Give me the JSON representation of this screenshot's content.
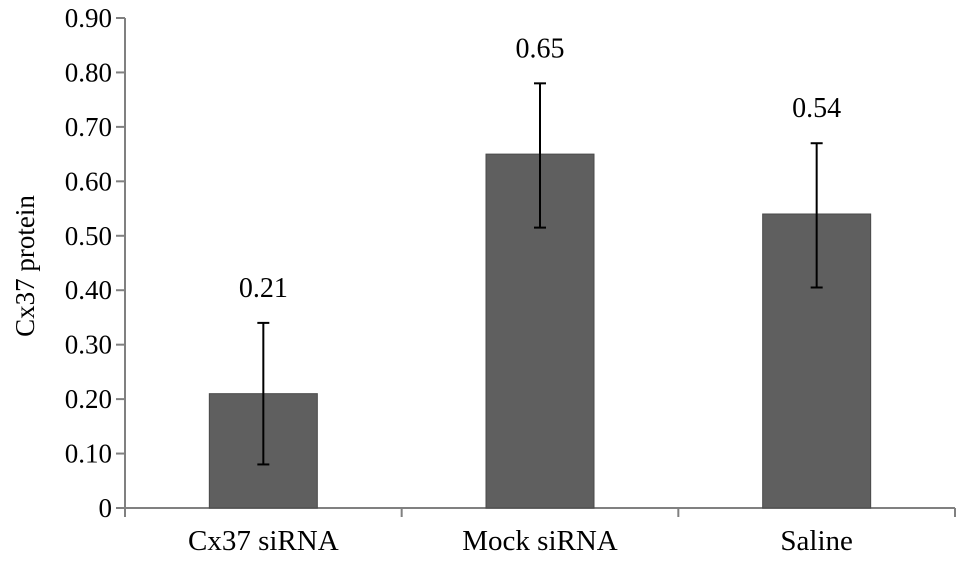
{
  "chart_data": {
    "type": "bar",
    "categories": [
      "Cx37 siRNA",
      "Mock siRNA",
      "Saline"
    ],
    "values": [
      0.21,
      0.65,
      0.54
    ],
    "data_labels": [
      "0.21",
      "0.65",
      "0.54"
    ],
    "error": {
      "lower": [
        0.08,
        0.515,
        0.405
      ],
      "upper": [
        0.34,
        0.78,
        0.67
      ]
    },
    "title": "",
    "xlabel": "",
    "ylabel": "Cx37 protein",
    "ylim": [
      0,
      0.9
    ],
    "yticks": [
      0,
      0.1,
      0.2,
      0.3,
      0.4,
      0.5,
      0.6,
      0.7,
      0.8,
      0.9
    ],
    "ytick_labels": [
      "0",
      "0.10",
      "0.20",
      "0.30",
      "0.40",
      "0.50",
      "0.60",
      "0.70",
      "0.80",
      "0.90"
    ],
    "grid": false,
    "legend": "none",
    "bar_color": "#5f5f5f",
    "axis_color": "#808080"
  }
}
